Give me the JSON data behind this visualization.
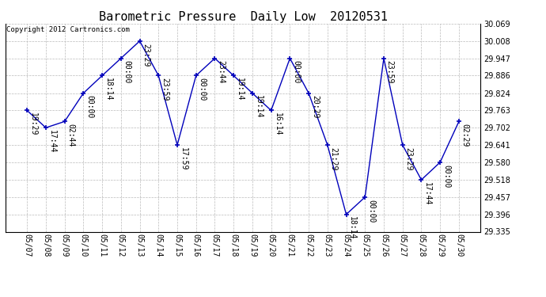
{
  "title": "Barometric Pressure  Daily Low  20120531",
  "copyright": "Copyright 2012 Cartronics.com",
  "dates": [
    "05/07",
    "05/08",
    "05/09",
    "05/10",
    "05/11",
    "05/12",
    "05/13",
    "05/14",
    "05/15",
    "05/16",
    "05/17",
    "05/18",
    "05/19",
    "05/20",
    "05/21",
    "05/22",
    "05/23",
    "05/24",
    "05/25",
    "05/26",
    "05/27",
    "05/28",
    "05/29",
    "05/30"
  ],
  "values": [
    29.763,
    29.702,
    29.724,
    29.824,
    29.886,
    29.947,
    30.008,
    29.886,
    29.641,
    29.886,
    29.947,
    29.886,
    29.824,
    29.763,
    29.947,
    29.824,
    29.641,
    29.396,
    29.457,
    29.947,
    29.641,
    29.518,
    29.58,
    29.724
  ],
  "annotations": [
    "19:29",
    "17:44",
    "02:44",
    "00:00",
    "18:14",
    "00:00",
    "23:29",
    "23:59",
    "17:59",
    "00:00",
    "23:44",
    "19:14",
    "19:14",
    "16:14",
    "00:00",
    "20:29",
    "21:29",
    "18:14",
    "00:00",
    "23:59",
    "23:29",
    "17:44",
    "00:00",
    "02:29"
  ],
  "line_color": "#0000bb",
  "marker_color": "#0000bb",
  "background_color": "#ffffff",
  "grid_color": "#bbbbbb",
  "title_fontsize": 11,
  "annotation_fontsize": 7,
  "copyright_fontsize": 6.5,
  "tick_fontsize": 7,
  "ylim_min": 29.335,
  "ylim_max": 30.069,
  "yticks": [
    29.335,
    29.396,
    29.457,
    29.518,
    29.58,
    29.641,
    29.702,
    29.763,
    29.824,
    29.886,
    29.947,
    30.008,
    30.069
  ]
}
